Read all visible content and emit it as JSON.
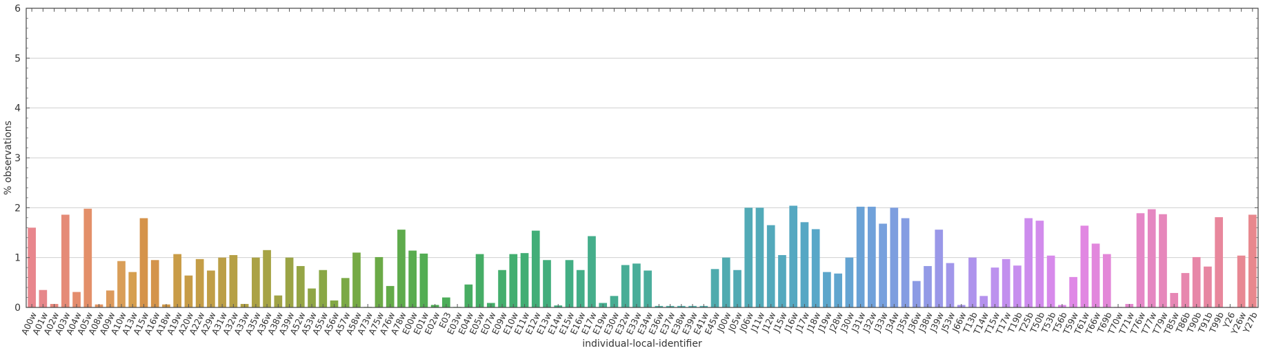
{
  "chart_data": {
    "type": "bar",
    "xlabel": "individual-local-identifier",
    "ylabel": "% observations",
    "ylim": [
      0,
      6
    ],
    "yticks": [
      0,
      1,
      2,
      3,
      4,
      5,
      6
    ],
    "grid": "horizontal",
    "categories": [
      "A00w",
      "A01w",
      "A02w",
      "A03w",
      "A04w",
      "A05w",
      "A08w",
      "A09w",
      "A10w",
      "A13w",
      "A15w",
      "A16w",
      "A18w",
      "A19w",
      "A20w",
      "A22w",
      "A29w",
      "A31w",
      "A32w",
      "A33w",
      "A35w",
      "A36w",
      "A38w",
      "A39w",
      "A52w",
      "A53w",
      "A55w",
      "A56w",
      "A57w",
      "A58w",
      "A73w",
      "A75w",
      "A76w",
      "A78w",
      "E00w",
      "E01w",
      "E02w",
      "E03",
      "E03w",
      "E04w",
      "E05w",
      "E07w",
      "E09w",
      "E10w",
      "E11w",
      "E12w",
      "E13w",
      "E14w",
      "E15w",
      "E16w",
      "E17w",
      "E19w",
      "E30w",
      "E32w",
      "E33w",
      "E34w",
      "E36w",
      "E37w",
      "E38w",
      "E39w",
      "E41w",
      "E45w",
      "J00w",
      "J05w",
      "J06w",
      "J11w",
      "J12w",
      "J15w",
      "J16w",
      "J17w",
      "J18w",
      "J19w",
      "J28w",
      "J30w",
      "J31w",
      "J32w",
      "J33w",
      "J34w",
      "J35w",
      "J36w",
      "J38w",
      "J39w",
      "J53w",
      "J66w",
      "T13b",
      "T14w",
      "T15w",
      "T17w",
      "T19b",
      "T25b",
      "T50b",
      "T53b",
      "T56b",
      "T59w",
      "T61w",
      "T66w",
      "T69b",
      "T70w",
      "T71w",
      "T76w",
      "T77w",
      "T79w",
      "T85w",
      "T86b",
      "T90b",
      "T91b",
      "T99b",
      "Y26",
      "Y26w",
      "Y27b"
    ],
    "values": [
      1.6,
      0.35,
      0.07,
      1.86,
      0.31,
      1.98,
      0.06,
      0.34,
      0.93,
      0.71,
      1.79,
      0.95,
      0.06,
      1.07,
      0.64,
      0.97,
      0.74,
      1.0,
      1.05,
      0.07,
      1.0,
      1.15,
      0.24,
      1.0,
      0.83,
      0.38,
      0.75,
      0.14,
      0.59,
      1.1,
      0.01,
      1.01,
      0.43,
      1.56,
      1.14,
      1.08,
      0.05,
      0.2,
      0.01,
      0.46,
      1.07,
      0.09,
      0.75,
      1.07,
      1.09,
      1.54,
      0.95,
      0.04,
      0.95,
      0.75,
      1.43,
      0.09,
      0.23,
      0.85,
      0.88,
      0.74,
      0.03,
      0.03,
      0.03,
      0.03,
      0.03,
      0.77,
      1.0,
      0.75,
      2.0,
      2.0,
      1.65,
      1.05,
      2.04,
      1.71,
      1.57,
      0.71,
      0.68,
      1.0,
      2.02,
      2.02,
      1.68,
      2.0,
      1.79,
      0.53,
      0.83,
      1.56,
      0.89,
      0.05,
      1.0,
      0.23,
      0.8,
      0.97,
      0.84,
      1.79,
      1.74,
      1.04,
      0.05,
      0.61,
      1.64,
      1.28,
      1.07,
      0.01,
      0.07,
      1.89,
      1.97,
      1.87,
      0.29,
      0.69,
      1.01,
      0.82,
      1.81,
      0.01,
      1.04,
      1.86
    ],
    "colors": [
      "#e8868d",
      "#e6878a",
      "#e6887e",
      "#e58b77",
      "#e48d6e",
      "#e38f69",
      "#e09463",
      "#dc9a5c",
      "#d99e58",
      "#d69f4f",
      "#d5934a",
      "#d4944b",
      "#cf9848",
      "#c99c47",
      "#c79c47",
      "#c49d47",
      "#c09e47",
      "#bb9f47",
      "#b6a045",
      "#b0a145",
      "#aba245",
      "#a6a345",
      "#a1a346",
      "#9ba446",
      "#95a546",
      "#8fa646",
      "#89a745",
      "#83a845",
      "#7ba946",
      "#76aa45",
      "#70aa45",
      "#6baa47",
      "#64ab49",
      "#5eab4c",
      "#59ac4f",
      "#53ad53",
      "#4fad55",
      "#4cad59",
      "#4aad5d",
      "#48ad62",
      "#46ad66",
      "#45ae6a",
      "#44ae6d",
      "#43ae70",
      "#42ae74",
      "#42ae78",
      "#42ae7c",
      "#43ae80",
      "#43ae84",
      "#44ae88",
      "#45ae8b",
      "#46ad8e",
      "#47ad92",
      "#48ad96",
      "#49ad99",
      "#4aad9c",
      "#4badA0",
      "#4cada4",
      "#4caca8",
      "#4daca9",
      "#4eabaa",
      "#4fabad",
      "#50abb0",
      "#51aab3",
      "#52aab6",
      "#52aab8",
      "#53a9bb",
      "#54a9be",
      "#55a8c1",
      "#56a7c4",
      "#58a7c8",
      "#5ca6cb",
      "#60a5ce",
      "#65a4d2",
      "#6aa2d6",
      "#70a1da",
      "#77a0dd",
      "#7d9edf",
      "#859de2",
      "#8c9be4",
      "#939ae6",
      "#9a98e8",
      "#a196ea",
      "#a895eb",
      "#ae93ec",
      "#b592ed",
      "#bc91ee",
      "#c28fee",
      "#c78eee",
      "#cc8ced",
      "#d28bec",
      "#d78aeb",
      "#db89e9",
      "#df88e6",
      "#e187e2",
      "#e287dd",
      "#e387d8",
      "#e487d3",
      "#e487cd",
      "#e587c7",
      "#e587c1",
      "#e687bb",
      "#e687b5",
      "#e787ae",
      "#e787a8",
      "#e787a2",
      "#e8879c",
      "#e88897",
      "#e88893",
      "#e8888e"
    ]
  }
}
